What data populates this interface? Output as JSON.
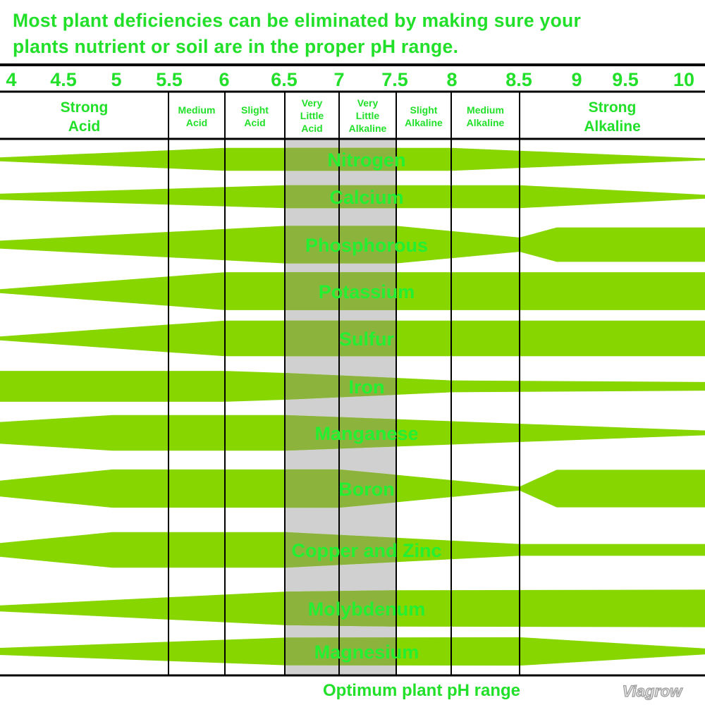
{
  "header": {
    "title_line1": "Most plant deficiencies can be eliminated by making sure your",
    "title_line2": "plants nutrient or soil are in the proper pH range."
  },
  "footer": {
    "caption": "Optimum plant pH range",
    "logo": "Viagrow"
  },
  "colors": {
    "text": "#22e02a",
    "band": "#88d600",
    "band_optimum": "#8cb43c",
    "optimum_shade": "#d0d0d0",
    "grid": "#000000"
  },
  "chart_data": {
    "type": "area",
    "title": "Most plant deficiencies can be eliminated by making sure your plants nutrient or soil are in the proper pH range.",
    "xlabel": "pH",
    "xlim": [
      4,
      10
    ],
    "x_ticks": [
      "4",
      "4.5",
      "5",
      "5.5",
      "6",
      "6.5",
      "7",
      "7.5",
      "8",
      "8.5",
      "9",
      "9.5",
      "10"
    ],
    "optimum_range": [
      6.5,
      7.5
    ],
    "optimum_label": "Optimum plant pH range",
    "zones": [
      {
        "lines": [
          "Strong",
          "Acid"
        ],
        "from": 4,
        "to": 5.5
      },
      {
        "lines": [
          "Medium",
          "Acid"
        ],
        "from": 5.5,
        "to": 6
      },
      {
        "lines": [
          "Slight",
          "Acid"
        ],
        "from": 6,
        "to": 6.5
      },
      {
        "lines": [
          "Very",
          "Little",
          "Acid"
        ],
        "from": 6.5,
        "to": 7
      },
      {
        "lines": [
          "Very",
          "Little",
          "Alkaline"
        ],
        "from": 7,
        "to": 7.5
      },
      {
        "lines": [
          "Slight",
          "Alkaline"
        ],
        "from": 7.5,
        "to": 8
      },
      {
        "lines": [
          "Medium",
          "Alkaline"
        ],
        "from": 8,
        "to": 8.5
      },
      {
        "lines": [
          "Strong",
          "Alkaline"
        ],
        "from": 8.5,
        "to": 10
      }
    ],
    "value_meaning": "relative nutrient availability (band thickness, 0-1)",
    "series": [
      {
        "name": "Nitrogen",
        "points": [
          [
            4,
            0.1
          ],
          [
            6,
            0.58
          ],
          [
            8,
            0.58
          ],
          [
            10,
            0.05
          ]
        ]
      },
      {
        "name": "Calcium",
        "points": [
          [
            4,
            0.15
          ],
          [
            6.5,
            0.58
          ],
          [
            8.5,
            0.58
          ],
          [
            10,
            0.1
          ]
        ]
      },
      {
        "name": "Phosphorous",
        "points": [
          [
            4,
            0.2
          ],
          [
            6.5,
            0.95
          ],
          [
            7.5,
            0.95
          ],
          [
            8.5,
            0.36
          ],
          [
            8.8,
            0.87
          ],
          [
            10,
            0.87
          ]
        ]
      },
      {
        "name": "Potassium",
        "points": [
          [
            4,
            0.1
          ],
          [
            6,
            0.96
          ],
          [
            10,
            0.96
          ]
        ]
      },
      {
        "name": "Sulfur",
        "points": [
          [
            4,
            0.1
          ],
          [
            6,
            0.9
          ],
          [
            10,
            0.9
          ]
        ]
      },
      {
        "name": "Iron",
        "points": [
          [
            4,
            0.78
          ],
          [
            6,
            0.78
          ],
          [
            6.5,
            0.68
          ],
          [
            8,
            0.3
          ],
          [
            10,
            0.22
          ]
        ]
      },
      {
        "name": "Manganese",
        "points": [
          [
            4,
            0.55
          ],
          [
            5,
            0.9
          ],
          [
            6.5,
            0.9
          ],
          [
            10,
            0.12
          ]
        ]
      },
      {
        "name": "Boron",
        "points": [
          [
            4,
            0.4
          ],
          [
            5,
            0.97
          ],
          [
            7,
            0.97
          ],
          [
            8.5,
            0.1
          ],
          [
            8.8,
            0.95
          ],
          [
            10,
            0.95
          ]
        ]
      },
      {
        "name": "Copper and Zinc",
        "points": [
          [
            4,
            0.35
          ],
          [
            5,
            0.9
          ],
          [
            6.5,
            0.9
          ],
          [
            8.5,
            0.3
          ],
          [
            10,
            0.3
          ]
        ]
      },
      {
        "name": "Molybdenum",
        "points": [
          [
            4,
            0.15
          ],
          [
            6.5,
            0.85
          ],
          [
            7.5,
            0.92
          ],
          [
            10,
            0.95
          ]
        ]
      },
      {
        "name": "Magnesium",
        "points": [
          [
            4,
            0.18
          ],
          [
            6.5,
            0.7
          ],
          [
            8.5,
            0.72
          ],
          [
            10,
            0.15
          ]
        ]
      }
    ]
  }
}
